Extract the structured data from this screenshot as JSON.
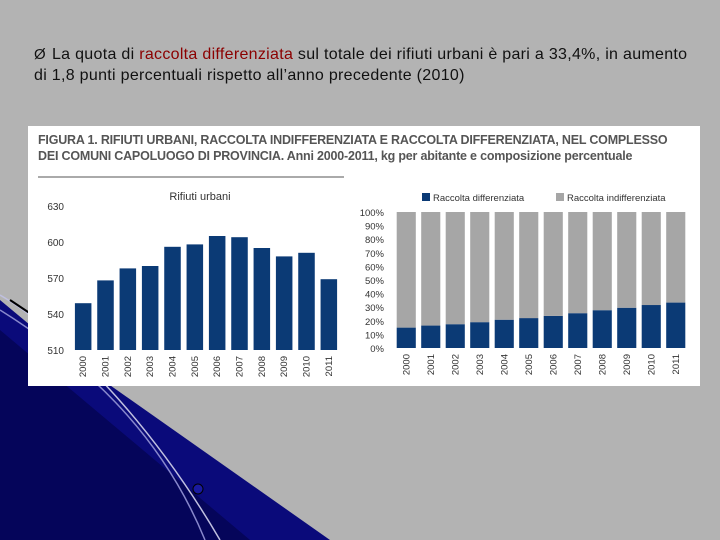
{
  "slide": {
    "bullet_arrow": "Ø",
    "text_before": "La quota di ",
    "highlight": "raccolta differenziata",
    "text_after": " sul totale dei rifiuti urbani è pari a 33,4%, in aumento di 1,8 punti percentuali rispetto all’anno precedente (2010)",
    "colors": {
      "background": "#b3b3b3",
      "highlight": "#8b0000"
    }
  },
  "figure": {
    "title_line1": "FIGURA 1. RIFIUTI URBANI, RACCOLTA INDIFFERENZIATA E RACCOLTA DIFFERENZIATA, NEL COMPLESSO",
    "title_line2": "DEI  COMUNI CAPOLUOGO DI PROVINCIA. Anni 2000-2011, kg per abitante e composizione percentuale"
  },
  "chart_data": [
    {
      "type": "bar",
      "title": "Rifiuti urbani",
      "categories": [
        "2000",
        "2001",
        "2002",
        "2003",
        "2004",
        "2005",
        "2006",
        "2007",
        "2008",
        "2009",
        "2010",
        "2011"
      ],
      "values": [
        549,
        568,
        578,
        580,
        596,
        598,
        605,
        604,
        595,
        588,
        591,
        569
      ],
      "ylim": [
        510,
        630
      ],
      "yticks": [
        "510",
        "540",
        "570",
        "600",
        "630"
      ],
      "color": "#0b3a75"
    },
    {
      "type": "bar",
      "stacked": true,
      "categories": [
        "2000",
        "2001",
        "2002",
        "2003",
        "2004",
        "2005",
        "2006",
        "2007",
        "2008",
        "2009",
        "2010",
        "2011"
      ],
      "yticks": [
        "0%",
        "10%",
        "20%",
        "30%",
        "40%",
        "50%",
        "60%",
        "70%",
        "80%",
        "90%",
        "100%"
      ],
      "legend_position": "top",
      "series": [
        {
          "name": "Raccolta differenziata",
          "color": "#0b3a75",
          "values": [
            15.0,
            16.5,
            17.5,
            19.0,
            20.8,
            22.0,
            23.6,
            25.6,
            27.8,
            29.6,
            31.6,
            33.4
          ]
        },
        {
          "name": "Raccolta indifferenziata",
          "color": "#a6a6a6",
          "values": [
            85.0,
            83.5,
            82.5,
            81.0,
            79.2,
            78.0,
            76.4,
            74.4,
            72.2,
            70.4,
            68.4,
            66.6
          ]
        }
      ]
    }
  ]
}
